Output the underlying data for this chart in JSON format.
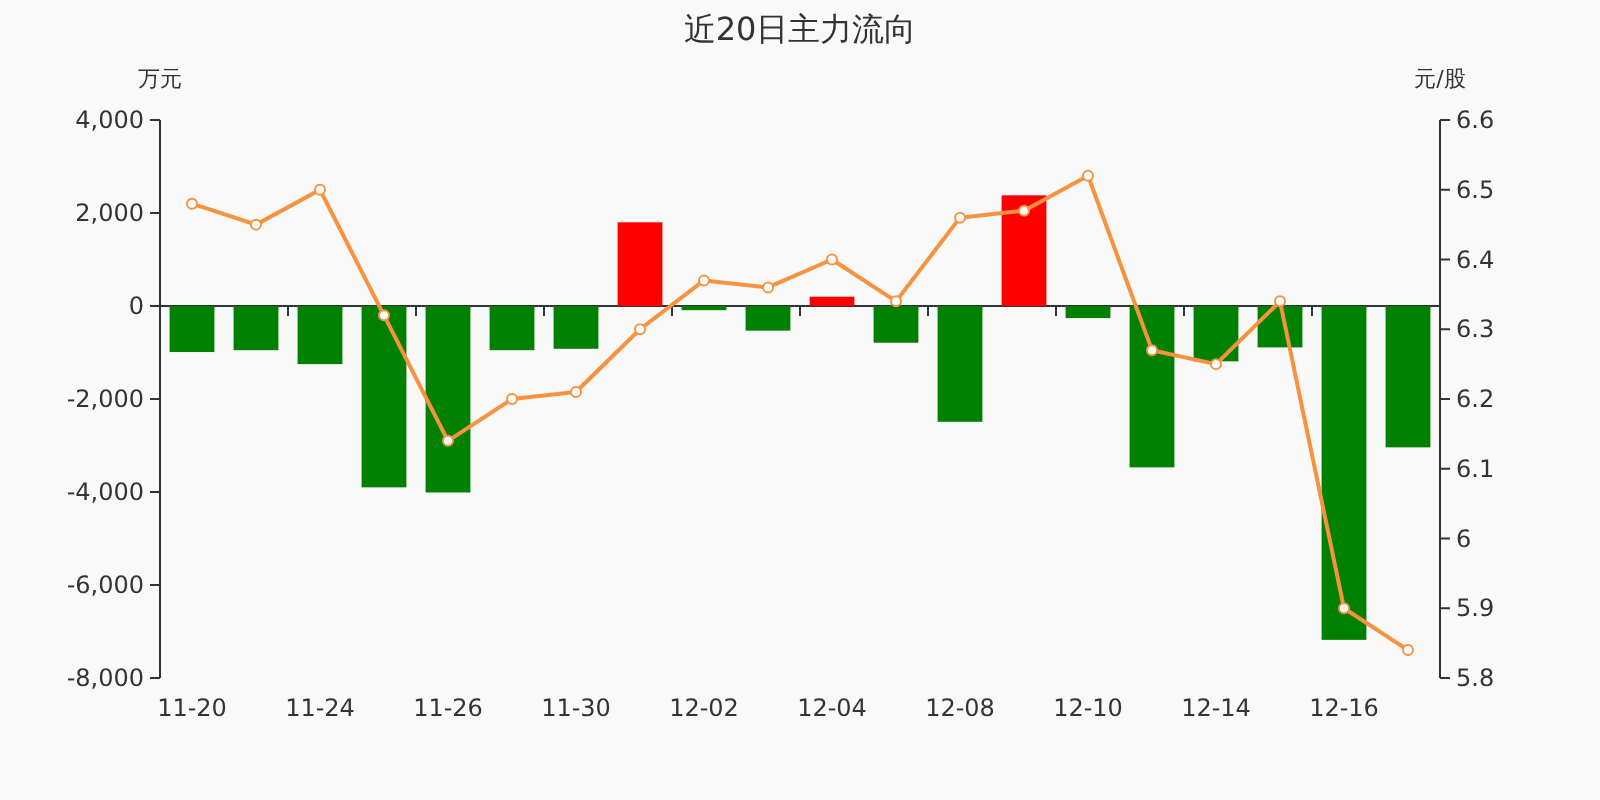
{
  "chart_data": {
    "type": "bar",
    "title": "近20日主力流向",
    "ylabel": "万元",
    "y2label": "元/股",
    "categories": [
      "11-20",
      null,
      "11-24",
      null,
      "11-26",
      null,
      "11-30",
      null,
      "12-02",
      null,
      "12-04",
      null,
      "12-08",
      null,
      "12-10",
      null,
      "12-14",
      null,
      "12-16",
      null
    ],
    "series": [
      {
        "values": [
          -990,
          -950,
          -1250,
          -3900,
          -4010,
          -950,
          -920,
          1800,
          -90,
          -530,
          200,
          -790,
          -2490,
          2380,
          -260,
          -3470,
          -1190,
          -890,
          -7180,
          -3040
        ],
        "colors": [
          "#008000",
          "#008000",
          "#008000",
          "#008000",
          "#008000",
          "#008000",
          "#008000",
          "#ff0000",
          "#008000",
          "#008000",
          "#ff0000",
          "#008000",
          "#008000",
          "#ff0000",
          "#008000",
          "#008000",
          "#008000",
          "#008000",
          "#008000",
          "#008000"
        ]
      },
      {
        "type": "line",
        "axis": "y2",
        "color": "#f7923f",
        "marker": "circle",
        "values": [
          6.48,
          6.45,
          6.5,
          6.32,
          6.14,
          6.2,
          6.21,
          6.3,
          6.37,
          6.36,
          6.4,
          6.34,
          6.46,
          6.47,
          6.52,
          6.27,
          6.25,
          6.34,
          5.9,
          5.84
        ]
      }
    ],
    "ylim": [
      -8000,
      4000
    ],
    "yticks": [
      {
        "value": -8000,
        "label": "-8,000"
      },
      {
        "value": -6000,
        "label": "-6,000"
      },
      {
        "value": -4000,
        "label": "-4,000"
      },
      {
        "value": -2000,
        "label": "-2,000"
      },
      0,
      {
        "value": 2000,
        "label": "2,000"
      },
      {
        "value": 4000,
        "label": "4,000"
      }
    ],
    "y2lim": [
      5.8,
      6.6
    ],
    "y2ticks": [
      5.8,
      5.9,
      6,
      6.1,
      6.2,
      6.3,
      6.4,
      6.5,
      6.6
    ]
  }
}
